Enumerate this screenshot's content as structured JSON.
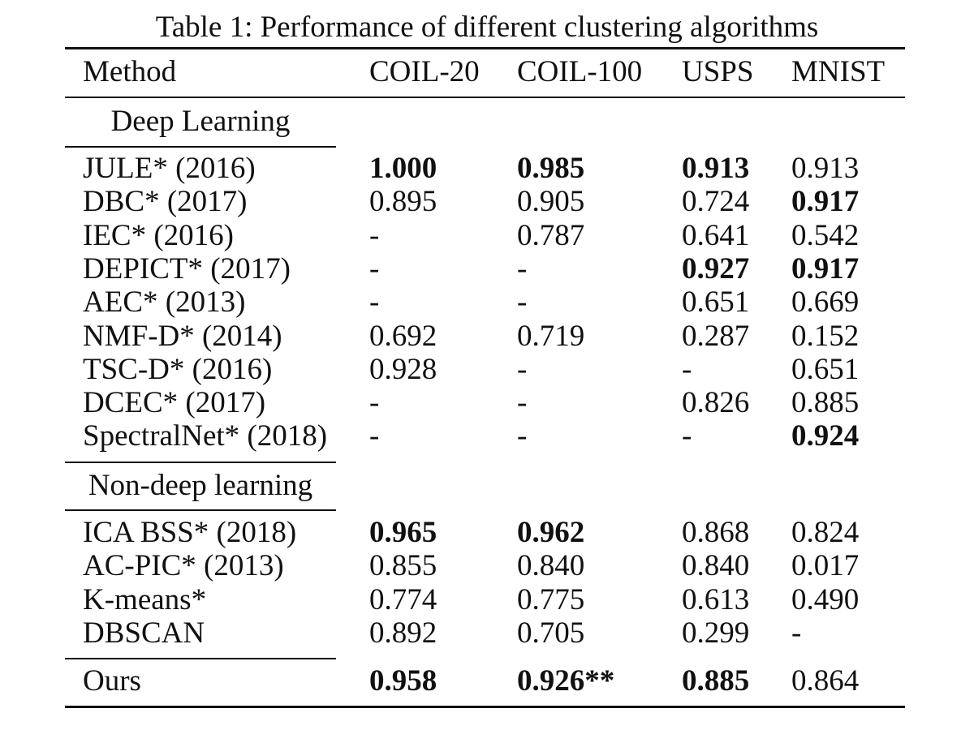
{
  "caption": "Table 1: Performance of different clustering algorithms",
  "columns": [
    "Method",
    "COIL-20",
    "COIL-100",
    "USPS",
    "MNIST"
  ],
  "sections": [
    {
      "title": "Deep Learning",
      "rows": [
        {
          "method": "JULE* (2016)",
          "values": [
            "1.000",
            "0.985",
            "0.913",
            "0.913"
          ],
          "bold": [
            true,
            true,
            true,
            false
          ]
        },
        {
          "method": "DBC* (2017)",
          "values": [
            "0.895",
            "0.905",
            "0.724",
            "0.917"
          ],
          "bold": [
            false,
            false,
            false,
            true
          ]
        },
        {
          "method": "IEC* (2016)",
          "values": [
            "-",
            "0.787",
            "0.641",
            "0.542"
          ],
          "bold": [
            false,
            false,
            false,
            false
          ]
        },
        {
          "method": "DEPICT* (2017)",
          "values": [
            "-",
            "-",
            "0.927",
            "0.917"
          ],
          "bold": [
            false,
            false,
            true,
            true
          ]
        },
        {
          "method": "AEC* (2013)",
          "values": [
            "-",
            "-",
            "0.651",
            "0.669"
          ],
          "bold": [
            false,
            false,
            false,
            false
          ]
        },
        {
          "method": "NMF-D* (2014)",
          "values": [
            "0.692",
            "0.719",
            "0.287",
            "0.152"
          ],
          "bold": [
            false,
            false,
            false,
            false
          ]
        },
        {
          "method": "TSC-D* (2016)",
          "values": [
            "0.928",
            "-",
            "-",
            "0.651"
          ],
          "bold": [
            false,
            false,
            false,
            false
          ]
        },
        {
          "method": "DCEC* (2017)",
          "values": [
            "-",
            "-",
            "0.826",
            "0.885"
          ],
          "bold": [
            false,
            false,
            false,
            false
          ]
        },
        {
          "method": "SpectralNet* (2018)",
          "values": [
            "-",
            "-",
            "-",
            "0.924"
          ],
          "bold": [
            false,
            false,
            false,
            true
          ]
        }
      ]
    },
    {
      "title": "Non-deep learning",
      "rows": [
        {
          "method": "ICA BSS* (2018)",
          "values": [
            "0.965",
            "0.962",
            "0.868",
            "0.824"
          ],
          "bold": [
            true,
            true,
            false,
            false
          ]
        },
        {
          "method": "AC-PIC* (2013)",
          "values": [
            "0.855",
            "0.840",
            "0.840",
            "0.017"
          ],
          "bold": [
            false,
            false,
            false,
            false
          ]
        },
        {
          "method": "K-means*",
          "values": [
            "0.774",
            "0.775",
            "0.613",
            "0.490"
          ],
          "bold": [
            false,
            false,
            false,
            false
          ]
        },
        {
          "method": "DBSCAN",
          "values": [
            "0.892",
            "0.705",
            "0.299",
            "-"
          ],
          "bold": [
            false,
            false,
            false,
            false
          ]
        }
      ]
    }
  ],
  "ours": {
    "method": "Ours",
    "values": [
      "0.958",
      "0.926**",
      "0.885",
      "0.864"
    ],
    "bold": [
      true,
      true,
      true,
      false
    ]
  }
}
